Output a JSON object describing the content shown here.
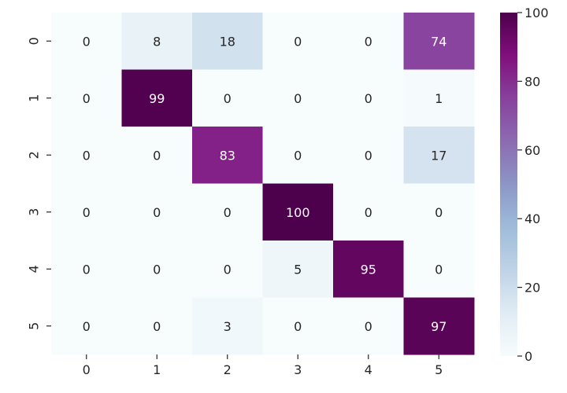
{
  "chart_data": {
    "type": "heatmap",
    "title": "",
    "xlabel": "",
    "ylabel": "",
    "x_categories": [
      "0",
      "1",
      "2",
      "3",
      "4",
      "5"
    ],
    "y_categories": [
      "0",
      "1",
      "2",
      "3",
      "4",
      "5"
    ],
    "values": [
      [
        0,
        8,
        18,
        0,
        0,
        74
      ],
      [
        0,
        99,
        0,
        0,
        0,
        1
      ],
      [
        0,
        0,
        83,
        0,
        0,
        17
      ],
      [
        0,
        0,
        0,
        100,
        0,
        0
      ],
      [
        0,
        0,
        0,
        5,
        95,
        0
      ],
      [
        0,
        0,
        3,
        0,
        0,
        97
      ]
    ],
    "annotations": true,
    "colorbar": {
      "range": [
        0,
        100
      ],
      "ticks": [
        0,
        20,
        40,
        60,
        80,
        100
      ],
      "colormap": "BuPu",
      "placement": "right"
    },
    "colors": {
      "low": "#f7fcfd",
      "high": "#4d004b"
    }
  }
}
